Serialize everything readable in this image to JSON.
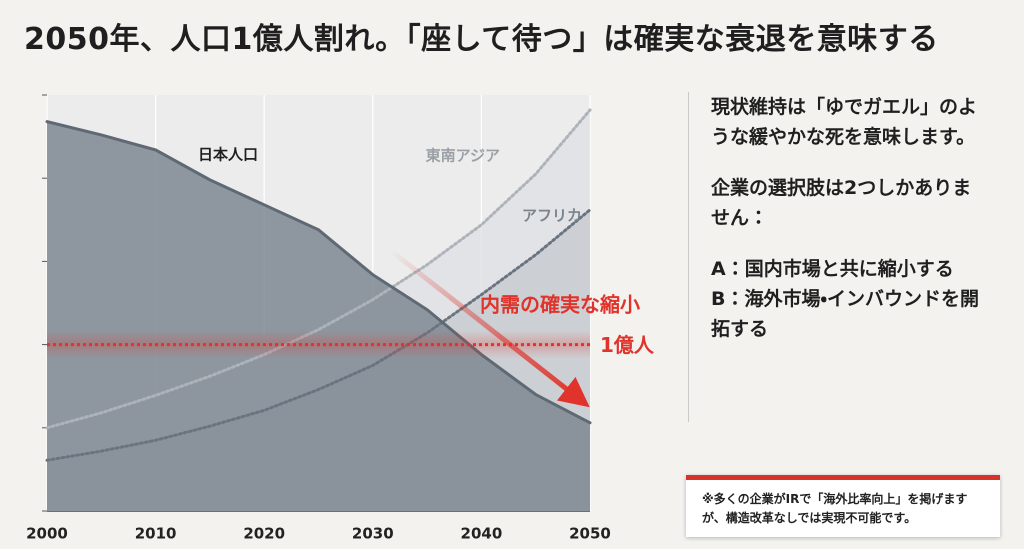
{
  "title": "2050年、人口1億人割れ。「座して待つ」は確実な衰退を意味する",
  "chart_data": {
    "type": "line",
    "x": [
      2000,
      2005,
      2010,
      2015,
      2020,
      2025,
      2030,
      2035,
      2040,
      2045,
      2050
    ],
    "xlim": [
      2000,
      2050
    ],
    "xticks": [
      2000,
      2010,
      2020,
      2030,
      2040,
      2050
    ],
    "ylim": [
      0.8,
      1.3
    ],
    "yticks": [
      0.8,
      0.9,
      1.0,
      1.1,
      1.2,
      1.3
    ],
    "grid": true,
    "series": [
      {
        "name": "東南アジア",
        "color": "#aeb3b9",
        "values": [
          0.9,
          0.918,
          0.939,
          0.962,
          0.988,
          1.018,
          1.054,
          1.096,
          1.144,
          1.205,
          1.282
        ]
      },
      {
        "name": "アフリカ",
        "color": "#6a7480",
        "values": [
          0.861,
          0.872,
          0.885,
          0.902,
          0.921,
          0.946,
          0.975,
          1.014,
          1.06,
          1.108,
          1.162
        ]
      },
      {
        "name": "日本人口",
        "color": "#5f6973",
        "values": [
          1.268,
          1.252,
          1.234,
          1.198,
          1.168,
          1.138,
          1.084,
          1.042,
          0.988,
          0.94,
          0.906
        ]
      }
    ],
    "reference_line": {
      "value": 1.0,
      "label": "1億人",
      "color": "#e0332b"
    },
    "annotation": "内需の確実な縮小"
  },
  "side_text": {
    "paragraphs": [
      "現状維持は「ゆでガエル」のような緩やかな死を意味します。",
      "企業の選択肢は2つしかありません："
    ],
    "options": [
      "A：国内市場と共に縮小する",
      "B：海外市場・インバウンドを開拓する"
    ]
  },
  "footnote": "※多くの企業がIRで「海外比率向上」を掲げますが、構造改革なしでは実現不可能です。"
}
